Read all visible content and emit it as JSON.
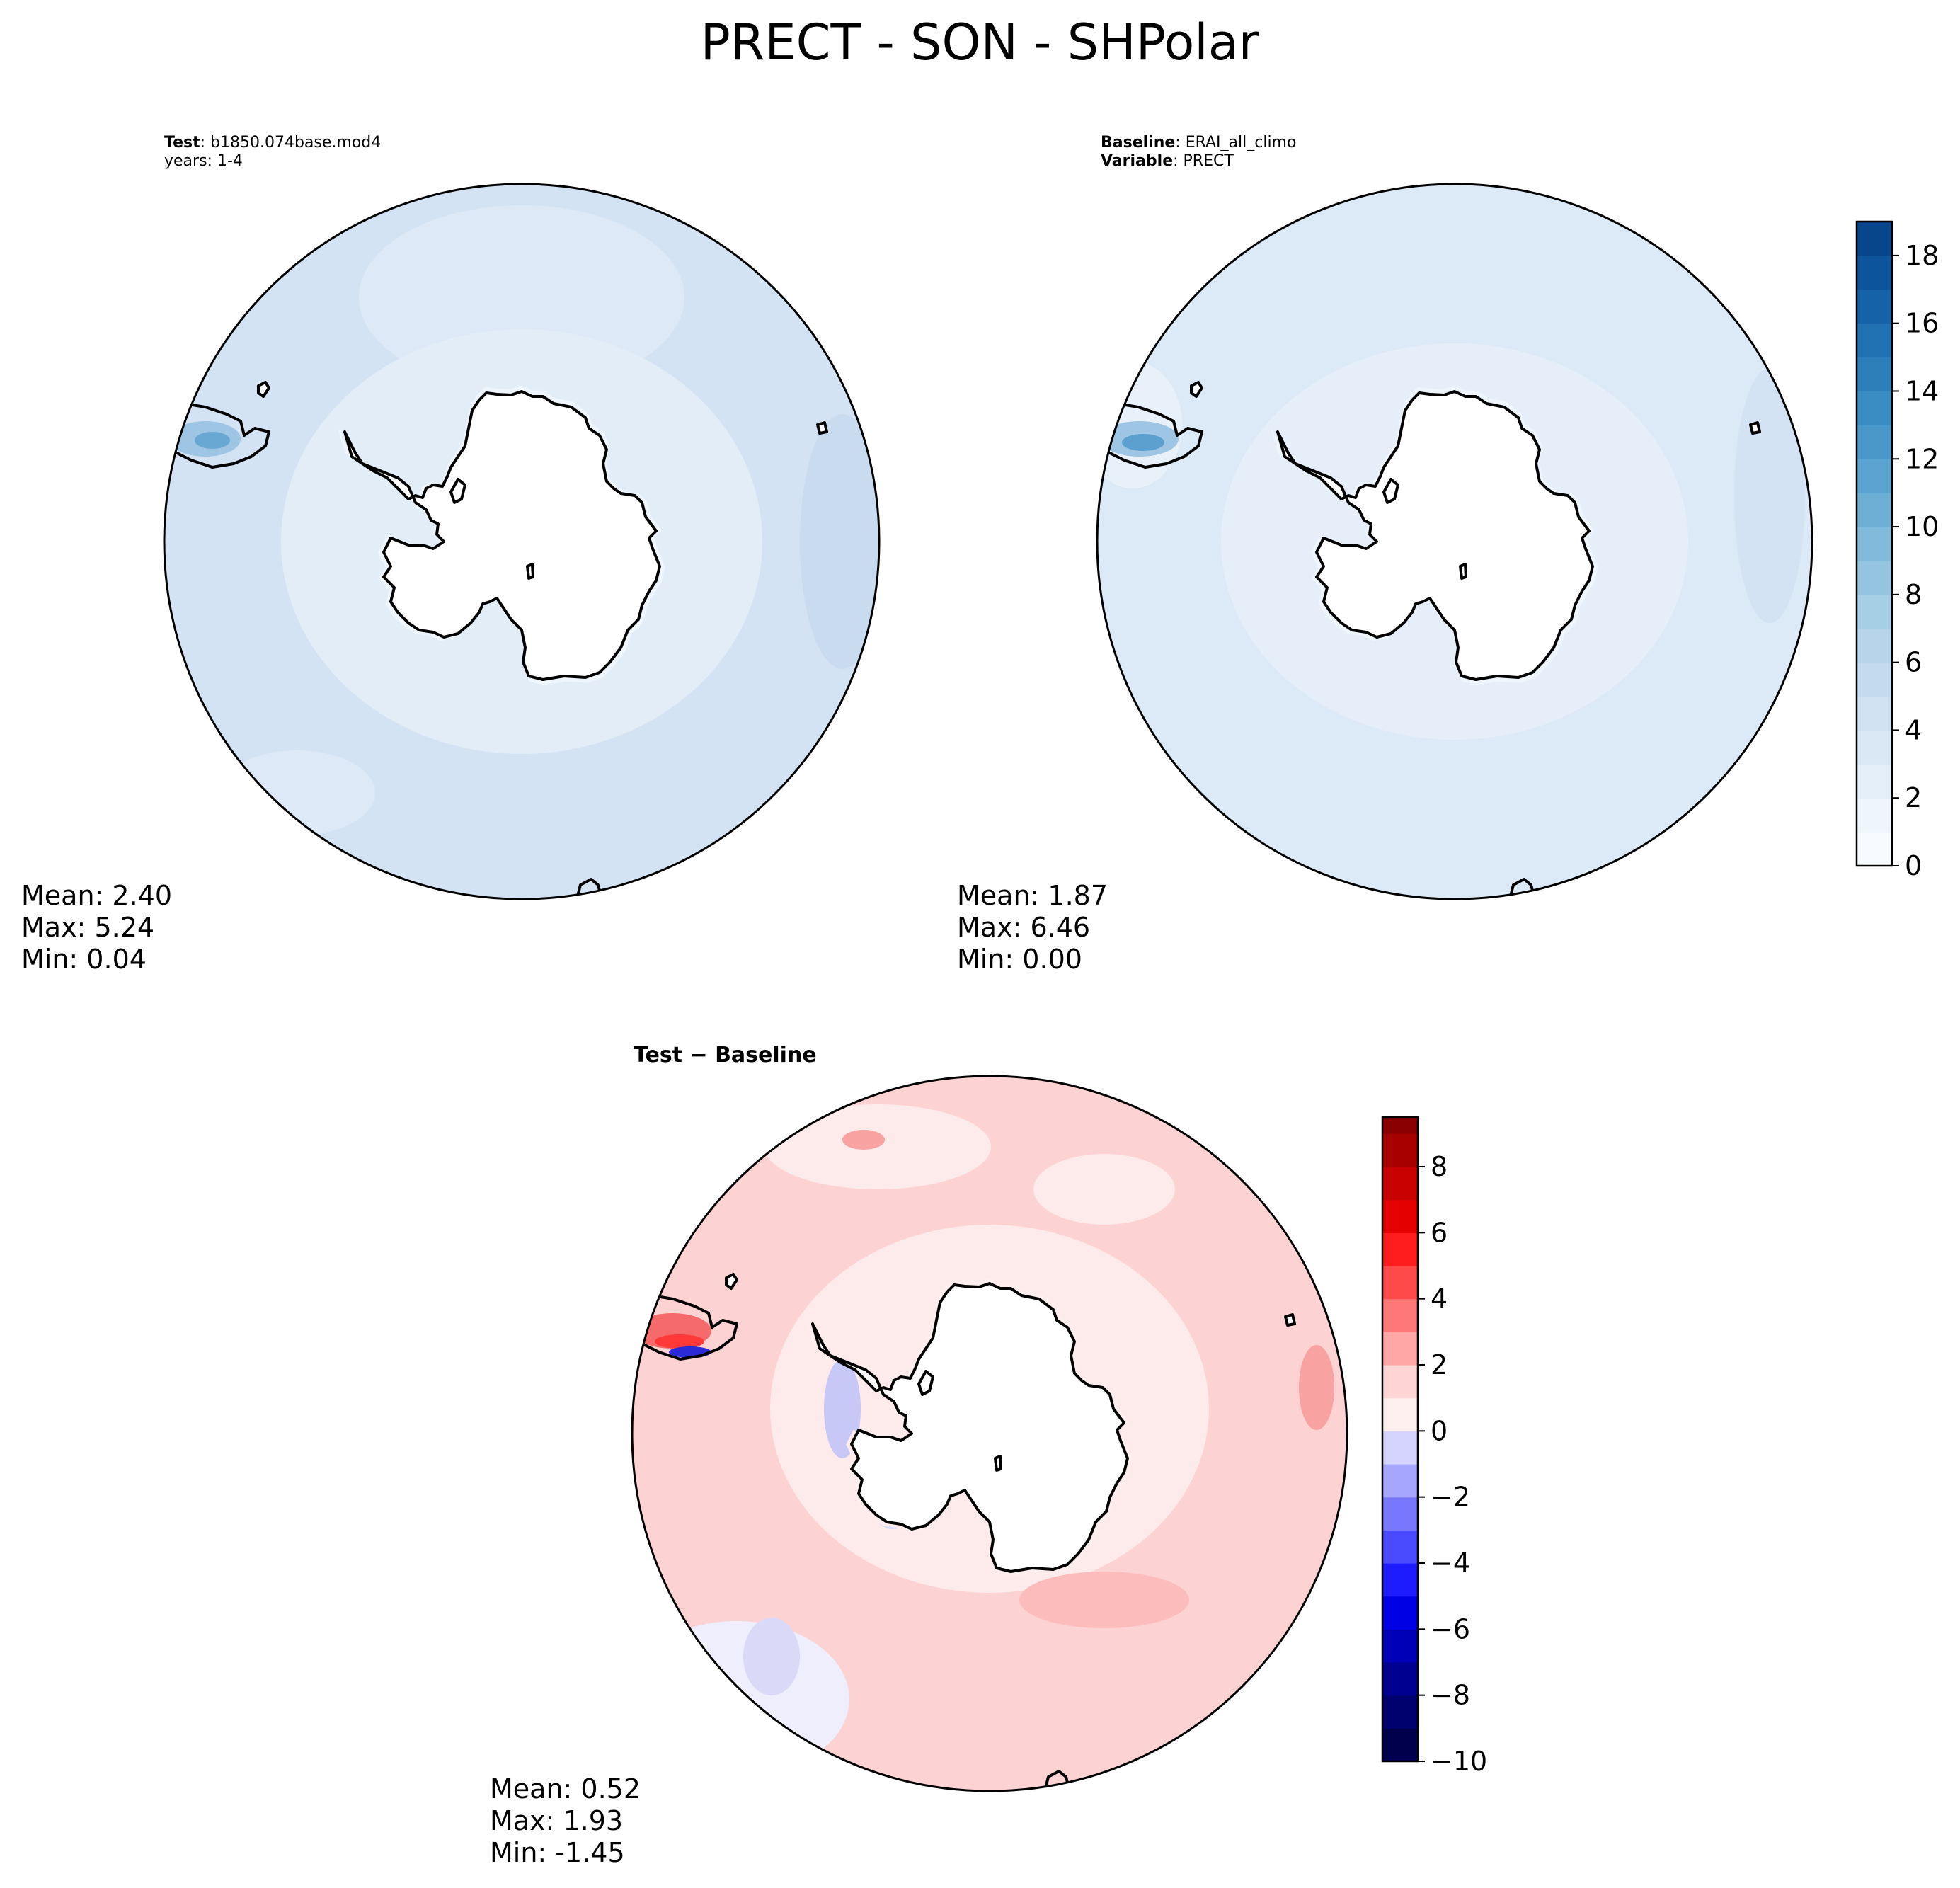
{
  "title": "PRECT - SON - SHPolar",
  "panels": {
    "test": {
      "label_key": "Test",
      "label_value": ": b1850.074base.mod4",
      "line2": "years: 1-4",
      "stats": {
        "mean": "Mean:  2.40",
        "max": "Max:  5.24",
        "min": "Min:  0.04"
      }
    },
    "baseline": {
      "label_key": "Baseline",
      "label_value": ": ERAI_all_climo",
      "var_key": "Variable",
      "var_value": ": PRECT",
      "stats": {
        "mean": "Mean:  1.87",
        "max": "Max:  6.46",
        "min": "Min:  0.00"
      }
    },
    "diff": {
      "label_a": "Test",
      "label_sep": " − ",
      "label_b": "Baseline",
      "stats": {
        "mean": "Mean:  0.52",
        "max": "Max:  1.93",
        "min": "Min: -1.45"
      }
    }
  },
  "chart_data": [
    {
      "type": "heatmap",
      "name": "Test",
      "projection": "south-polar-stereographic",
      "region": "SHPolar",
      "variable": "PRECT",
      "season": "SON",
      "colormap": "Blues",
      "mean": 2.4,
      "max": 5.24,
      "min": 0.04,
      "colorbar_levels": [
        0,
        1,
        2,
        3,
        4,
        5,
        6,
        7,
        8,
        9,
        10,
        11,
        12,
        13,
        14,
        15,
        16,
        17,
        18,
        19
      ]
    },
    {
      "type": "heatmap",
      "name": "Baseline",
      "projection": "south-polar-stereographic",
      "region": "SHPolar",
      "variable": "PRECT",
      "season": "SON",
      "colormap": "Blues",
      "mean": 1.87,
      "max": 6.46,
      "min": 0.0,
      "colorbar": {
        "range": [
          0,
          19
        ],
        "ticks": [
          0,
          2,
          4,
          6,
          8,
          10,
          12,
          14,
          16,
          18
        ],
        "tick_labels": [
          "0",
          "2",
          "4",
          "6",
          "8",
          "10",
          "12",
          "14",
          "16",
          "18"
        ],
        "levels": [
          0,
          1,
          2,
          3,
          4,
          5,
          6,
          7,
          8,
          9,
          10,
          11,
          12,
          13,
          14,
          15,
          16,
          17,
          18,
          19
        ],
        "colors": [
          "#f7fbff",
          "#eef5fc",
          "#e4effa",
          "#dae8f6",
          "#d0e1f2",
          "#c4daee",
          "#b7d4ea",
          "#a6cee4",
          "#94c4df",
          "#82badb",
          "#6daed5",
          "#5ba3d0",
          "#4a98c9",
          "#3a8dc2",
          "#2c7fb8",
          "#1f71b1",
          "#1562a9",
          "#0c549b",
          "#08468b"
        ]
      }
    },
    {
      "type": "heatmap",
      "name": "Test − Baseline",
      "projection": "south-polar-stereographic",
      "region": "SHPolar",
      "colormap": "seismic",
      "mean": 0.52,
      "max": 1.93,
      "min": -1.45,
      "colorbar": {
        "range": [
          -10,
          9.5
        ],
        "ticks": [
          -10,
          -8,
          -6,
          -4,
          -2,
          0,
          2,
          4,
          6,
          8
        ],
        "tick_labels": [
          "−10",
          "−8",
          "−6",
          "−4",
          "−2",
          "0",
          "2",
          "4",
          "6",
          "8"
        ],
        "levels": [
          -10,
          -9,
          -8,
          -7,
          -6,
          -5,
          -4,
          -3,
          -2,
          -1,
          0,
          1,
          2,
          3,
          4,
          5,
          6,
          7,
          8,
          9,
          9.5
        ],
        "colors": [
          "#00004c",
          "#00006e",
          "#000090",
          "#0000b8",
          "#0000e4",
          "#1c1cff",
          "#4a4aff",
          "#7878ff",
          "#a6a6ff",
          "#d4d4ff",
          "#fff0f0",
          "#ffd4d4",
          "#ffa6a6",
          "#ff7878",
          "#ff4a4a",
          "#ff1c1c",
          "#e40000",
          "#c80000",
          "#a80000",
          "#8a0000"
        ]
      }
    }
  ]
}
